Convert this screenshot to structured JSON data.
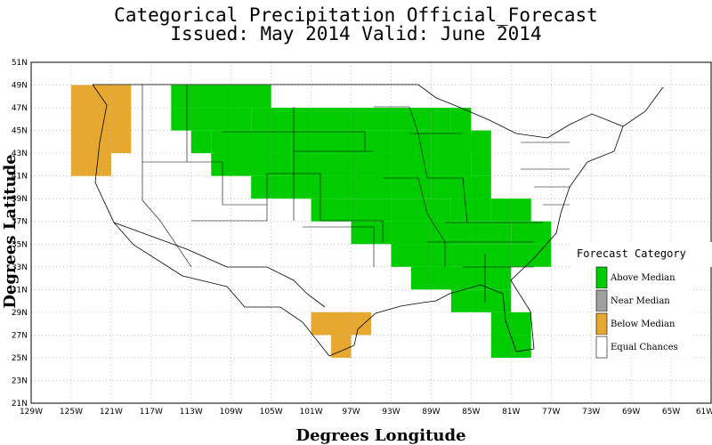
{
  "header": {
    "title": "Categorical Precipitation Official_Forecast",
    "subtitle": "Issued: May 2014 Valid: June 2014"
  },
  "axes": {
    "x_label": "Degrees Longitude",
    "y_label": "Degrees Latitude",
    "x_ticks": [
      "129W",
      "125W",
      "121W",
      "117W",
      "113W",
      "109W",
      "105W",
      "101W",
      "97W",
      "93W",
      "89W",
      "85W",
      "81W",
      "77W",
      "73W",
      "69W",
      "65W",
      "61W"
    ],
    "y_ticks": [
      "51N",
      "49N",
      "47N",
      "45N",
      "43N",
      "41N",
      "39N",
      "37N",
      "35N",
      "33N",
      "31N",
      "29N",
      "27N",
      "25N",
      "23N",
      "21N"
    ],
    "lon_range": [
      -129,
      -61
    ],
    "lat_range": [
      21,
      51
    ],
    "grid": true
  },
  "legend": {
    "title": "Forecast Category",
    "items": [
      {
        "label": "Above Median",
        "color": "#00cc00"
      },
      {
        "label": "Near Median",
        "color": "#a0a0a0"
      },
      {
        "label": "Below Median",
        "color": "#e6a82e"
      },
      {
        "label": "Equal Chances",
        "color": "#ffffff"
      }
    ]
  },
  "chart_data": {
    "type": "map",
    "categories": {
      "above": "#00cc00",
      "below": "#e6a82e"
    },
    "regions": [
      {
        "category": "below",
        "cells": [
          [
            -125,
            -121,
            41,
            49
          ],
          [
            -121,
            -119,
            43,
            49
          ]
        ]
      },
      {
        "category": "below",
        "cells": [
          [
            -101,
            -95,
            27,
            29
          ],
          [
            -99,
            -97,
            25,
            27
          ]
        ]
      },
      {
        "category": "above",
        "cells": [
          [
            -115,
            -105,
            47,
            49
          ],
          [
            -115,
            -107,
            45,
            47
          ],
          [
            -113,
            -111,
            43,
            45
          ],
          [
            -111,
            -103,
            41,
            45
          ],
          [
            -107,
            -99,
            39,
            41
          ],
          [
            -101,
            -93,
            37,
            39
          ],
          [
            -97,
            -91,
            35,
            37
          ],
          [
            -89,
            -81,
            35,
            37
          ],
          [
            -107,
            -89,
            45,
            47
          ],
          [
            -103,
            -89,
            39,
            45
          ],
          [
            -93,
            -87,
            33,
            39
          ],
          [
            -89,
            -85,
            39,
            45
          ],
          [
            -87,
            -85,
            43,
            47
          ],
          [
            -89,
            -87,
            41,
            47
          ],
          [
            -85,
            -83,
            41,
            45
          ],
          [
            -87,
            -83,
            37,
            41
          ],
          [
            -83,
            -79,
            37,
            39
          ],
          [
            -81,
            -77,
            35,
            37
          ],
          [
            -91,
            -77,
            33,
            35
          ],
          [
            -91,
            -81,
            31,
            33
          ],
          [
            -87,
            -81,
            29,
            31
          ],
          [
            -83,
            -79,
            25,
            29
          ]
        ]
      }
    ]
  }
}
